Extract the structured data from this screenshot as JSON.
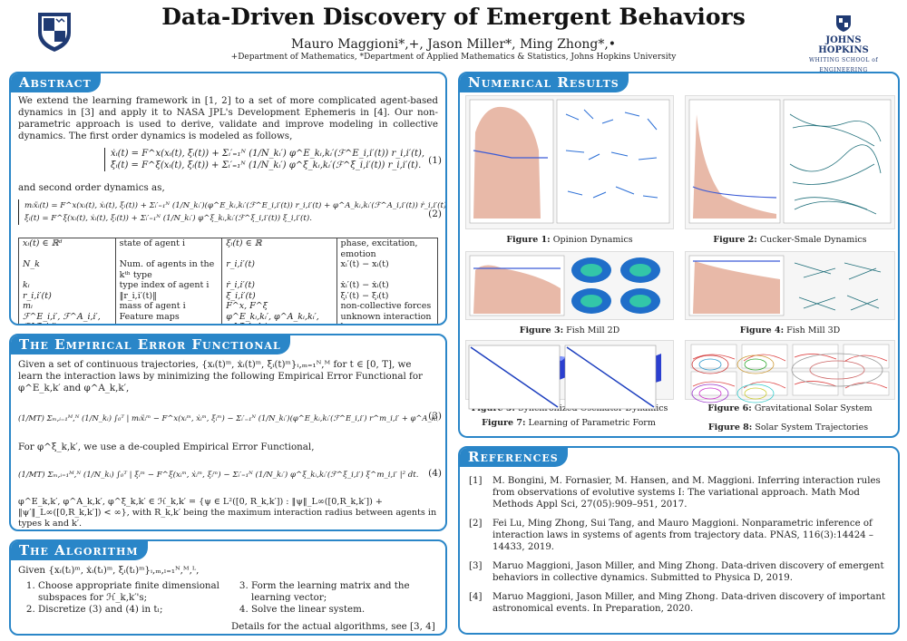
{
  "header": {
    "title": "Data-Driven Discovery of Emergent Behaviors",
    "authors": "Mauro Maggioni*,+, Jason Miller*, Ming Zhong*,•",
    "affiliations": "+Department of Mathematics, *Department of Applied Mathematics & Statistics, Johns Hopkins University",
    "jhu_logo_line1": "JOHNS HOPKINS",
    "jhu_logo_line2": "WHITING SCHOOL of ENGINEERING"
  },
  "abstract": {
    "heading": "Abstract",
    "intro": "We extend the learning framework in [1, 2] to a set of more complicated agent-based dynamics in [3] and apply it to NASA JPL's Development Ephemeris in [4]. Our non-parametric approach is used to derive, validate and improve modeling in collective dynamics. The first order dynamics is modeled as follows,",
    "eq1_line1": "ẋᵢ(t) = F^x(xᵢ(t), ξᵢ(t)) + Σᵢ′₌₁ᴺ (1/N_kᵢ′) φ^E_kᵢ,kᵢ′(ℱ^E_i,i′(t)) r_i,i′(t),",
    "eq1_line2": "ξ̇ᵢ(t) = F^ξ(xᵢ(t), ξᵢ(t)) + Σᵢ′₌₁ᴺ (1/N_kᵢ′) φ^ξ_kᵢ,kᵢ′(ℱ^ξ_i,i′(t)) r_i,i′(t).",
    "eq1_num": "(1)",
    "second_order_intro": "and second order dynamics as,",
    "eq2_line1": "mᵢẍᵢ(t) = F^x(xᵢ(t), ẋᵢ(t), ξᵢ(t)) + Σᵢ′₌₁ᴺ (1/N_kᵢ′)(φ^E_kᵢ,kᵢ′(ℱ^E_i,i′(t)) r_i,i′(t) + φ^A_kᵢ,kᵢ′(ℱ^A_i,i′(t)) ṙ_i,i′(t)),",
    "eq2_line2": "ξ̇ᵢ(t) = F^ξ(xᵢ(t), ẋᵢ(t), ξᵢ(t)) + Σᵢ′₌₁ᴺ (1/N_kᵢ′) φ^ξ_kᵢ,kᵢ′(ℱ^ξ_i,i′(t)) ξ_i,i′(t).",
    "eq2_num": "(2)",
    "table": [
      [
        "xᵢ(t) ∈ ℝᵈ",
        "state of agent i",
        "ξᵢ(t) ∈ ℝ",
        "phase, excitation, emotion"
      ],
      [
        "N_k",
        "Num. of agents in the kᵗʰ type",
        "r_i,i′(t)",
        "xᵢ′(t) − xᵢ(t)"
      ],
      [
        "kᵢ",
        "type index of agent i",
        "ṙ_i,i′(t)",
        "ẋᵢ′(t) − ẋᵢ(t)"
      ],
      [
        "r_i,i′(t)",
        "‖r_i,i′(t)‖",
        "ξ_i,i′(t)",
        "ξᵢ′(t) − ξᵢ(t)"
      ],
      [
        "mᵢ",
        "mass of agent i",
        "F^x, F^ξ",
        "non-collective forces"
      ],
      [
        "ℱ^E_i,i′, ℱ^A_i,i′, ℱ^ξ_i,i′",
        "Feature maps",
        "φ^E_kᵢ,kᵢ′, φ^A_kᵢ,kᵢ′, φ^ξ_kᵢ,kᵢ′",
        "unknown interaction laws"
      ]
    ]
  },
  "empirical": {
    "heading": "The Empirical Error Functional",
    "intro": "Given a set of continuous trajectories, {xᵢ(t)ᵐ, ẋᵢ(t)ᵐ, ξᵢ(t)ᵐ}ᵢ,ₘ₌₁ᴺ,ᴹ for t ∈ [0, T], we learn the interaction laws by minimizing the following Empirical Error Functional for φ^E_k,k′ and φ^A_k,k′,",
    "eq3": "(1/MT) Σₘ,ᵢ₌₁ᴹ,ᴺ (1/N_kᵢ) ∫₀ᵀ | mᵢẍᵢᵐ − F^x(xᵢᵐ, ẋᵢᵐ, ξᵢᵐ) − Σᵢ′₌₁ᴺ (1/N_kᵢ′)(φ^E_kᵢ,kᵢ′(ℱ^E_i,i′) r^m_i,i′ + φ^A_kᵢ,kᵢ′(ℱ^A_i,i′) ṙ^m_i,i′) |² dt.",
    "eq3_num": "(3)",
    "mid": "For φ^ξ_k,k′, we use a de-coupled Empirical Error Functional,",
    "eq4": "(1/MT) Σₘ,ᵢ₌₁ᴹ,ᴺ (1/N_kᵢ) ∫₀ᵀ | ξ̇ᵢᵐ − F^ξ(xᵢᵐ, ẋᵢᵐ, ξᵢᵐ) − Σᵢ′₌₁ᴺ (1/N_kᵢ′) φ^ξ_kᵢ,kᵢ′(ℱ^ξ_i,i′) ξ^m_i,i′ |² dt.",
    "eq4_num": "(4)",
    "footer": "φ^E_k,k′, φ^A_k,k′, φ^ξ_k,k′ ∈ ℋ_k,k′ = {ψ ∈ L²([0, R_k,k′]) : ‖ψ‖_L∞([0,R_k,k′]) + ‖ψ′‖_L∞([0,R_k,k′]) < ∞}, with R_k,k′ being the maximum interaction radius between agents in types k and k′."
  },
  "algorithm": {
    "heading": "The Algorithm",
    "intro": "Given {xᵢ(tₗ)ᵐ, ẋᵢ(tₗ)ᵐ, ξᵢ(tₗ)ᵐ}ᵢ,ₘ,ₗ₌₁ᴺ,ᴹ,ᴸ,",
    "steps_left": [
      "Choose appropriate finite dimensional subspaces for ℋ_k,k′'s;",
      "Discretize (3) and (4) in tₗ;"
    ],
    "steps_right": [
      "Form the learning matrix and the learning vector;",
      "Solve the linear system."
    ],
    "details": "Details for the actual algorithms, see [3, 4]"
  },
  "results": {
    "heading": "Numerical Results",
    "figures": [
      {
        "label": "Figure 1:",
        "caption": "Opinion Dynamics"
      },
      {
        "label": "Figure 2:",
        "caption": "Cucker-Smale Dynamics"
      },
      {
        "label": "Figure 3:",
        "caption": "Fish Mill 2D"
      },
      {
        "label": "Figure 4:",
        "caption": "Fish Mill 3D"
      },
      {
        "label": "Figure 5:",
        "caption": "Synchronized Oscillator Dynamics"
      },
      {
        "label": "Figure 6:",
        "caption": "Gravitational Solar System"
      },
      {
        "label": "Figure 7:",
        "caption": "Learning of Parametric Form"
      },
      {
        "label": "Figure 8:",
        "caption": "Solar System Trajectories"
      }
    ]
  },
  "references": {
    "heading": "References",
    "items": [
      {
        "num": "[1]",
        "text": "M. Bongini, M. Fornasier, M. Hansen, and M. Maggioni. Inferring interaction rules from observations of evolutive systems I: The variational approach. Math Mod Methods Appl Sci, 27(05):909–951, 2017."
      },
      {
        "num": "[2]",
        "text": "Fei Lu, Ming Zhong, Sui Tang, and Mauro Maggioni. Nonparametric inference of interaction laws in systems of agents from trajectory data. PNAS, 116(3):14424 – 14433, 2019."
      },
      {
        "num": "[3]",
        "text": "Maruo Maggioni, Jason Miller, and Ming Zhong. Data-driven discovery of emergent behaviors in collective dynamics. Submitted to Physica D, 2019."
      },
      {
        "num": "[4]",
        "text": "Maruo Maggioni, Jason Miller, and Ming Zhong. Data-driven discovery of important astronomical events. In Preparation, 2020."
      }
    ]
  }
}
